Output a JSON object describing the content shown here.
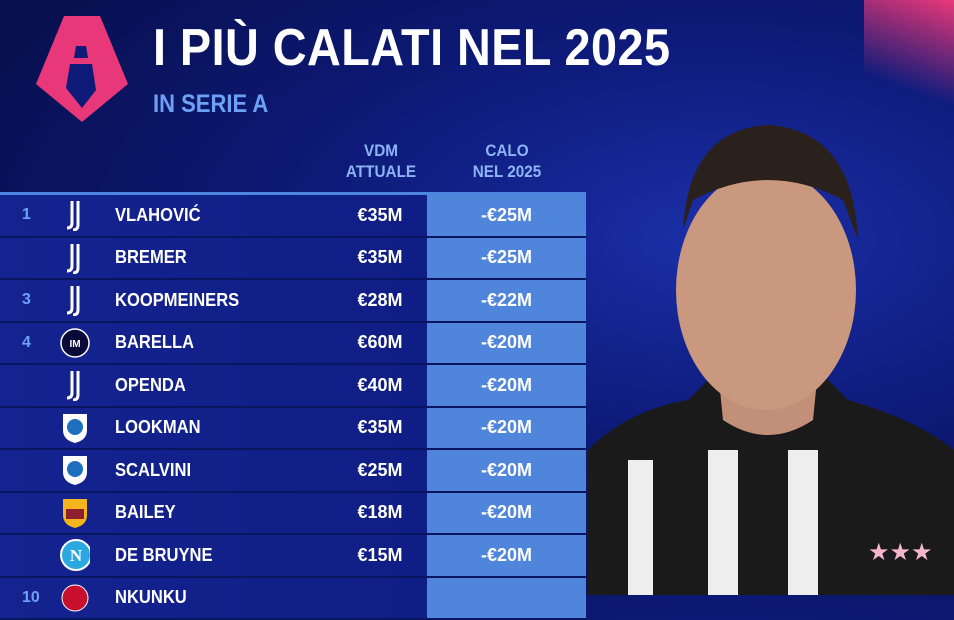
{
  "header": {
    "title": "I PIÙ CALATI NEL 2025",
    "subtitle": "IN SERIE A"
  },
  "columns": {
    "vdm": [
      "VDM",
      "ATTUALE"
    ],
    "calo": [
      "CALO",
      "NEL 2025"
    ]
  },
  "colors": {
    "background": "#0d1a78",
    "accent": "#4f85da",
    "logo": "#e8387a",
    "subtitle": "#6ea0f5"
  },
  "rows": [
    {
      "rank": "1",
      "club": "juventus",
      "name": "VLAHOVIĆ",
      "vdm": "€35M",
      "calo": "-€25M"
    },
    {
      "rank": "",
      "club": "juventus",
      "name": "BREMER",
      "vdm": "€35M",
      "calo": "-€25M"
    },
    {
      "rank": "3",
      "club": "juventus",
      "name": "KOOPMEINERS",
      "vdm": "€28M",
      "calo": "-€22M"
    },
    {
      "rank": "4",
      "club": "inter",
      "name": "BARELLA",
      "vdm": "€60M",
      "calo": "-€20M"
    },
    {
      "rank": "",
      "club": "juventus",
      "name": "OPENDA",
      "vdm": "€40M",
      "calo": "-€20M"
    },
    {
      "rank": "",
      "club": "atalanta",
      "name": "LOOKMAN",
      "vdm": "€35M",
      "calo": "-€20M"
    },
    {
      "rank": "",
      "club": "atalanta",
      "name": "SCALVINI",
      "vdm": "€25M",
      "calo": "-€20M"
    },
    {
      "rank": "",
      "club": "roma",
      "name": "BAILEY",
      "vdm": "€18M",
      "calo": "-€20M"
    },
    {
      "rank": "",
      "club": "napoli",
      "name": "DE BRUYNE",
      "vdm": "€15M",
      "calo": "-€20M"
    },
    {
      "rank": "10",
      "club": "milan",
      "name": "NKUNKU",
      "vdm": "",
      "calo": ""
    }
  ]
}
